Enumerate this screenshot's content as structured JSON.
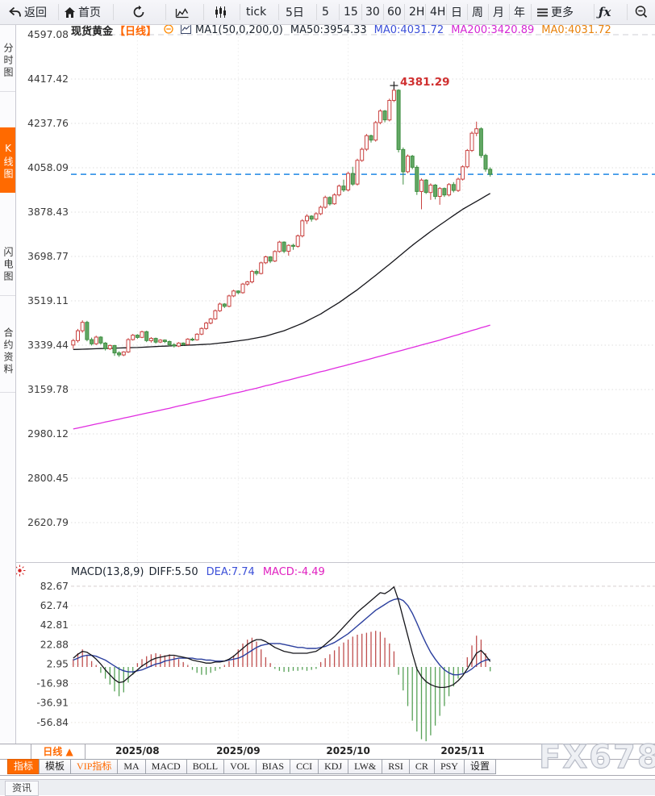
{
  "toolbar": {
    "items": [
      {
        "name": "back-button",
        "icon": "back-arrow-icon",
        "label": "返回"
      },
      {
        "name": "home-button",
        "icon": "home-icon",
        "label": "首页"
      },
      {
        "name": "refresh-button",
        "icon": "refresh-icon",
        "label": ""
      },
      {
        "name": "area-chart-button",
        "icon": "area-chart-icon",
        "label": ""
      },
      {
        "name": "candle-chart-button",
        "icon": "candle-chart-icon",
        "label": ""
      },
      {
        "name": "tick-button",
        "icon": "",
        "label": "tick"
      },
      {
        "name": "period-5d-button",
        "icon": "",
        "label": "5日"
      },
      {
        "name": "period-5m-button",
        "icon": "",
        "label": "5"
      },
      {
        "name": "period-15m-button",
        "icon": "",
        "label": "15"
      },
      {
        "name": "period-30m-button",
        "icon": "",
        "label": "30"
      },
      {
        "name": "period-60m-button",
        "icon": "",
        "label": "60"
      },
      {
        "name": "period-2h-button",
        "icon": "",
        "label": "2H"
      },
      {
        "name": "period-4h-button",
        "icon": "",
        "label": "4H"
      },
      {
        "name": "period-day-button",
        "icon": "",
        "label": "日"
      },
      {
        "name": "period-week-button",
        "icon": "",
        "label": "周"
      },
      {
        "name": "period-month-button",
        "icon": "",
        "label": "月"
      },
      {
        "name": "period-year-button",
        "icon": "",
        "label": "年"
      },
      {
        "name": "more-button",
        "icon": "menu-icon",
        "label": "更多"
      },
      {
        "name": "fx-button",
        "icon": "fx-icon",
        "label": "ƒx"
      },
      {
        "name": "zoom-out-button",
        "icon": "zoom-out-icon",
        "label": ""
      }
    ]
  },
  "sidebar": {
    "items": [
      {
        "name": "sidebar-item-time-chart",
        "label": "分时图",
        "active": false
      },
      {
        "name": "sidebar-item-kline-chart",
        "label": "K线图",
        "active": true
      },
      {
        "name": "sidebar-item-lightning-chart",
        "label": "闪电图",
        "active": false
      },
      {
        "name": "sidebar-item-contract-info",
        "label": "合约资料",
        "active": false
      }
    ]
  },
  "chart_header": {
    "symbol": "现货黄金",
    "period": "【日线】",
    "ma_settings": "MA1(50,0,200,0)",
    "ma50": "MA50:3954.33",
    "ma0_blue": "MA0:4031.72",
    "ma200": "MA200:3420.89",
    "ma0_orange": "MA0:4031.72"
  },
  "macd_header": {
    "title": "MACD(13,8,9)",
    "diff": "DIFF:5.50",
    "dea": "DEA:7.74",
    "macd": "MACD:-4.49"
  },
  "annotation": {
    "high_label": "4381.29"
  },
  "bottom": {
    "period_button": "日线 ▲",
    "watermark": "FX678",
    "status_tab": "资讯",
    "tabs": [
      {
        "name": "tab-indicator",
        "label": "指标",
        "style": "active"
      },
      {
        "name": "tab-template",
        "label": "模板",
        "style": ""
      },
      {
        "name": "tab-vip-indicator",
        "label": "VIP指标",
        "style": "vip"
      },
      {
        "name": "tab-ma",
        "label": "MA",
        "style": ""
      },
      {
        "name": "tab-macd",
        "label": "MACD",
        "style": ""
      },
      {
        "name": "tab-boll",
        "label": "BOLL",
        "style": ""
      },
      {
        "name": "tab-vol",
        "label": "VOL",
        "style": ""
      },
      {
        "name": "tab-bias",
        "label": "BIAS",
        "style": ""
      },
      {
        "name": "tab-cci",
        "label": "CCI",
        "style": ""
      },
      {
        "name": "tab-kdj",
        "label": "KDJ",
        "style": ""
      },
      {
        "name": "tab-lw",
        "label": "LW&",
        "style": ""
      },
      {
        "name": "tab-rsi",
        "label": "RSI",
        "style": ""
      },
      {
        "name": "tab-cr",
        "label": "CR",
        "style": ""
      },
      {
        "name": "tab-psy",
        "label": "PSY",
        "style": ""
      },
      {
        "name": "tab-settings",
        "label": "设置",
        "style": ""
      }
    ]
  },
  "chart_data": {
    "type": "candlestick",
    "title": "现货黄金 日线",
    "y_ticks": [
      4597.08,
      4417.42,
      4237.76,
      4058.09,
      3878.43,
      3698.77,
      3519.11,
      3339.44,
      3159.78,
      2980.12,
      2800.45,
      2620.79
    ],
    "x_ticks": [
      {
        "label": "2025/08",
        "index": 14
      },
      {
        "label": "2025/09",
        "index": 36
      },
      {
        "label": "2025/10",
        "index": 60
      },
      {
        "label": "2025/11",
        "index": 85
      }
    ],
    "current_price": 4031.72,
    "high_annotation": {
      "value": 4381.29,
      "index": 70
    },
    "ma50_current": 3954.33,
    "ma200_current": 3420.89,
    "candles": [
      [
        3340,
        3365,
        3325,
        3358
      ],
      [
        3358,
        3405,
        3350,
        3398
      ],
      [
        3398,
        3440,
        3390,
        3432
      ],
      [
        3432,
        3438,
        3355,
        3362
      ],
      [
        3362,
        3370,
        3338,
        3345
      ],
      [
        3345,
        3378,
        3340,
        3372
      ],
      [
        3372,
        3376,
        3342,
        3348
      ],
      [
        3348,
        3352,
        3318,
        3325
      ],
      [
        3325,
        3342,
        3320,
        3338
      ],
      [
        3338,
        3340,
        3296,
        3308
      ],
      [
        3308,
        3315,
        3292,
        3300
      ],
      [
        3300,
        3315,
        3295,
        3312
      ],
      [
        3312,
        3368,
        3308,
        3362
      ],
      [
        3362,
        3385,
        3358,
        3380
      ],
      [
        3380,
        3384,
        3365,
        3371
      ],
      [
        3371,
        3398,
        3368,
        3394
      ],
      [
        3394,
        3398,
        3352,
        3358
      ],
      [
        3358,
        3372,
        3350,
        3367
      ],
      [
        3367,
        3370,
        3346,
        3352
      ],
      [
        3352,
        3364,
        3348,
        3360
      ],
      [
        3360,
        3363,
        3348,
        3354
      ],
      [
        3354,
        3358,
        3335,
        3341
      ],
      [
        3341,
        3348,
        3330,
        3336
      ],
      [
        3336,
        3352,
        3332,
        3348
      ],
      [
        3348,
        3351,
        3337,
        3342
      ],
      [
        3342,
        3368,
        3340,
        3364
      ],
      [
        3364,
        3370,
        3356,
        3361
      ],
      [
        3361,
        3388,
        3358,
        3384
      ],
      [
        3384,
        3412,
        3380,
        3407
      ],
      [
        3407,
        3434,
        3402,
        3429
      ],
      [
        3429,
        3450,
        3424,
        3446
      ],
      [
        3446,
        3484,
        3442,
        3479
      ],
      [
        3479,
        3512,
        3474,
        3506
      ],
      [
        3506,
        3510,
        3490,
        3497
      ],
      [
        3497,
        3544,
        3493,
        3539
      ],
      [
        3539,
        3564,
        3534,
        3559
      ],
      [
        3559,
        3562,
        3546,
        3552
      ],
      [
        3552,
        3592,
        3548,
        3587
      ],
      [
        3587,
        3600,
        3580,
        3596
      ],
      [
        3596,
        3644,
        3590,
        3638
      ],
      [
        3638,
        3646,
        3622,
        3630
      ],
      [
        3630,
        3678,
        3626,
        3673
      ],
      [
        3673,
        3702,
        3668,
        3697
      ],
      [
        3697,
        3700,
        3672,
        3680
      ],
      [
        3680,
        3724,
        3676,
        3719
      ],
      [
        3719,
        3762,
        3714,
        3757
      ],
      [
        3757,
        3760,
        3712,
        3720
      ],
      [
        3720,
        3748,
        3702,
        3744
      ],
      [
        3744,
        3750,
        3726,
        3740
      ],
      [
        3740,
        3788,
        3734,
        3782
      ],
      [
        3782,
        3850,
        3776,
        3843
      ],
      [
        3843,
        3870,
        3830,
        3862
      ],
      [
        3862,
        3866,
        3840,
        3850
      ],
      [
        3850,
        3878,
        3844,
        3872
      ],
      [
        3872,
        3905,
        3866,
        3898
      ],
      [
        3898,
        3945,
        3892,
        3938
      ],
      [
        3938,
        3942,
        3905,
        3912
      ],
      [
        3912,
        3955,
        3908,
        3948
      ],
      [
        3948,
        3990,
        3942,
        3984
      ],
      [
        3984,
        4010,
        3960,
        3968
      ],
      [
        3968,
        4042,
        3962,
        4035
      ],
      [
        4035,
        4062,
        3985,
        3992
      ],
      [
        3992,
        4095,
        3986,
        4088
      ],
      [
        4088,
        4140,
        4082,
        4133
      ],
      [
        4133,
        4195,
        4126,
        4188
      ],
      [
        4188,
        4192,
        4160,
        4170
      ],
      [
        4170,
        4248,
        4164,
        4241
      ],
      [
        4241,
        4295,
        4234,
        4288
      ],
      [
        4288,
        4292,
        4242,
        4252
      ],
      [
        4252,
        4338,
        4246,
        4331
      ],
      [
        4331,
        4381.29,
        4324,
        4372
      ],
      [
        4372,
        4376,
        4120,
        4132
      ],
      [
        4132,
        4140,
        3990,
        4042
      ],
      [
        4042,
        4112,
        4036,
        4105
      ],
      [
        4105,
        4110,
        4052,
        4060
      ],
      [
        4060,
        4068,
        3948,
        3962
      ],
      [
        3962,
        4015,
        3890,
        4008
      ],
      [
        4008,
        4012,
        3952,
        3958
      ],
      [
        3958,
        3995,
        3928,
        3988
      ],
      [
        3988,
        3992,
        3930,
        3942
      ],
      [
        3942,
        3980,
        3908,
        3974
      ],
      [
        3974,
        3978,
        3940,
        3948
      ],
      [
        3948,
        3996,
        3942,
        3990
      ],
      [
        3990,
        4000,
        3958,
        3966
      ],
      [
        3966,
        4018,
        3960,
        4012
      ],
      [
        4012,
        4068,
        4006,
        4062
      ],
      [
        4062,
        4134,
        4056,
        4128
      ],
      [
        4128,
        4205,
        4122,
        4198
      ],
      [
        4198,
        4245,
        4186,
        4216
      ],
      [
        4216,
        4222,
        4098,
        4108
      ],
      [
        4108,
        4115,
        4042,
        4052
      ],
      [
        4052,
        4060,
        4022,
        4031.72
      ]
    ],
    "ma50": [
      3322,
      3322.6,
      3323.2,
      3323.8,
      3324.4,
      3325,
      3325.6,
      3326.2,
      3326.8,
      3327.4,
      3328,
      3328.5,
      3329,
      3329.5,
      3330,
      3331,
      3332,
      3333,
      3334,
      3334.8,
      3335.5,
      3336.3,
      3337,
      3337.8,
      3338.5,
      3339.3,
      3340,
      3341,
      3342,
      3343,
      3344,
      3346,
      3348,
      3350,
      3352,
      3354.5,
      3357,
      3359.5,
      3362,
      3365.5,
      3369,
      3372.5,
      3376,
      3381.5,
      3387,
      3392.5,
      3398,
      3405.5,
      3413,
      3420.5,
      3428,
      3437.5,
      3447,
      3456.5,
      3466,
      3477.5,
      3489,
      3500.5,
      3512,
      3525,
      3538,
      3551,
      3564,
      3578.5,
      3593,
      3607.5,
      3622,
      3637,
      3652,
      3667,
      3682,
      3697.5,
      3713,
      3728.5,
      3744,
      3758,
      3772,
      3786,
      3800,
      3813,
      3826,
      3839,
      3852,
      3864.7,
      3877.3,
      3890,
      3900.7,
      3911.3,
      3922,
      3932.7,
      3943.3,
      3954.33
    ],
    "ma200": [
      3000,
      3004,
      3008,
      3012,
      3016,
      3020,
      3024,
      3028,
      3032,
      3036,
      3040,
      3044,
      3048,
      3052,
      3056,
      3060,
      3064,
      3068,
      3072,
      3076,
      3080,
      3084,
      3089,
      3093,
      3097,
      3101,
      3106,
      3110,
      3114,
      3118,
      3123,
      3127,
      3131,
      3135,
      3140,
      3144,
      3148,
      3152,
      3157,
      3161,
      3165,
      3170,
      3175,
      3179,
      3184,
      3189,
      3194,
      3198,
      3203,
      3208,
      3213,
      3217,
      3222,
      3227,
      3232,
      3236,
      3241,
      3246,
      3251,
      3255,
      3260,
      3265,
      3270,
      3275,
      3280,
      3285,
      3290,
      3295,
      3300,
      3305,
      3310,
      3315,
      3320,
      3325,
      3330,
      3335,
      3340,
      3345,
      3350,
      3355,
      3360,
      3366,
      3371,
      3377,
      3382,
      3388,
      3393,
      3399,
      3404,
      3410,
      3415,
      3420.89
    ],
    "macd": {
      "params": "13,8,9",
      "ticks": [
        82.67,
        62.74,
        42.81,
        22.88,
        2.95,
        -16.98,
        -36.91,
        -56.84
      ],
      "diff_current": 5.5,
      "dea_current": 7.74,
      "hist_current": -4.49,
      "diff": [
        9,
        13,
        16,
        15,
        12,
        8,
        3,
        -3,
        -8,
        -13,
        -16,
        -15,
        -11,
        -7,
        -3,
        1,
        4,
        7,
        9,
        10,
        11,
        12,
        12,
        11,
        10,
        9,
        7,
        6,
        5,
        4,
        4,
        5,
        5,
        6,
        8,
        11,
        15,
        19,
        23,
        26,
        28,
        28,
        26,
        23,
        20,
        18,
        16,
        15,
        14,
        14,
        14,
        14,
        15,
        16,
        19,
        23,
        27,
        31,
        36,
        41,
        46,
        51,
        56,
        60,
        64,
        68,
        72,
        76,
        75,
        78,
        82,
        68,
        50,
        32,
        14,
        -2,
        -10,
        -15,
        -18,
        -20,
        -21,
        -21,
        -20,
        -18,
        -14,
        -9,
        -2,
        6,
        14,
        17,
        12,
        5.5
      ],
      "dea": [
        7,
        9,
        11,
        12,
        12,
        11,
        9,
        7,
        4,
        1,
        -2,
        -4,
        -5,
        -5,
        -4,
        -3,
        -1,
        1,
        3,
        4,
        6,
        7,
        8,
        9,
        9,
        9,
        9,
        8,
        8,
        7,
        7,
        6,
        6,
        6,
        7,
        8,
        9,
        11,
        14,
        17,
        20,
        22,
        23,
        24,
        24,
        24,
        23,
        22,
        21,
        20,
        20,
        19,
        19,
        19,
        20,
        21,
        23,
        25,
        28,
        31,
        34,
        38,
        42,
        46,
        50,
        54,
        58,
        61,
        64,
        67,
        69,
        70,
        68,
        63,
        55,
        45,
        34,
        24,
        15,
        8,
        2,
        -3,
        -6,
        -8,
        -8,
        -7,
        -5,
        -2,
        2,
        5,
        7,
        7.74
      ],
      "hist": [
        8,
        14,
        18,
        12,
        6,
        2,
        -6,
        -12,
        -18,
        -25,
        -30,
        -26,
        -16,
        -8,
        4,
        8,
        11,
        13,
        14,
        13,
        12,
        13,
        11,
        8,
        5,
        2,
        -3,
        -6,
        -8,
        -8,
        -6,
        -4,
        -2,
        2,
        6,
        12,
        18,
        24,
        28,
        30,
        26,
        18,
        10,
        4,
        -2,
        -4,
        -5,
        -5,
        -4,
        -4,
        -3,
        -4,
        -3,
        -2,
        5,
        9,
        13,
        17,
        21,
        25,
        28,
        31,
        33,
        34,
        35,
        36,
        37,
        36,
        30,
        24,
        16,
        -8,
        -24,
        -40,
        -55,
        -66,
        -74,
        -76,
        -70,
        -60,
        -50,
        -40,
        -30,
        -20,
        -12,
        -6,
        10,
        22,
        32,
        28,
        14,
        -4.49
      ]
    },
    "colors": {
      "up": "#c9413f",
      "down_stroke": "#3e8e41",
      "down_fill": "#63a865",
      "ma50": "#15151a",
      "ma200": "#e02ce0",
      "diff": "#15151a",
      "dea": "#2b3f9e",
      "hist_up": "#bf4e4e",
      "hist_down": "#56a156",
      "price_line": "#1e87e5",
      "annotation": "#d03030",
      "accent_orange": "#ff6a00"
    }
  }
}
